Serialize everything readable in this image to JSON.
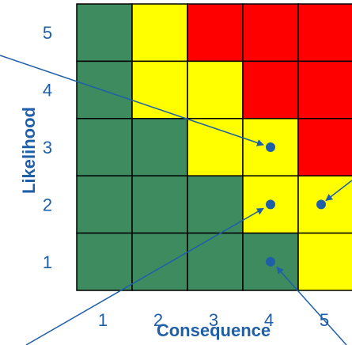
{
  "chart_data": {
    "type": "heatmap",
    "xlabel": "Consequence",
    "ylabel": "Likelihood",
    "x_ticks": [
      "1",
      "2",
      "3",
      "4",
      "5"
    ],
    "y_ticks": [
      "1",
      "2",
      "3",
      "4",
      "5"
    ],
    "colors": {
      "green": "#3d8b5e",
      "yellow": "#ffff00",
      "red": "#ff0000",
      "marker": "#1f5fa8"
    },
    "cells": [
      {
        "likelihood": 5,
        "levels": [
          "green",
          "yellow",
          "red",
          "red",
          "red"
        ]
      },
      {
        "likelihood": 4,
        "levels": [
          "green",
          "yellow",
          "yellow",
          "red",
          "red"
        ]
      },
      {
        "likelihood": 3,
        "levels": [
          "green",
          "green",
          "yellow",
          "yellow",
          "red"
        ]
      },
      {
        "likelihood": 2,
        "levels": [
          "green",
          "green",
          "green",
          "yellow",
          "yellow"
        ]
      },
      {
        "likelihood": 1,
        "levels": [
          "green",
          "green",
          "green",
          "green",
          "yellow"
        ]
      }
    ],
    "points": [
      {
        "consequence": 4,
        "likelihood": 3
      },
      {
        "consequence": 4,
        "likelihood": 2
      },
      {
        "consequence": 5,
        "likelihood": 2
      },
      {
        "consequence": 4,
        "likelihood": 1
      }
    ]
  }
}
